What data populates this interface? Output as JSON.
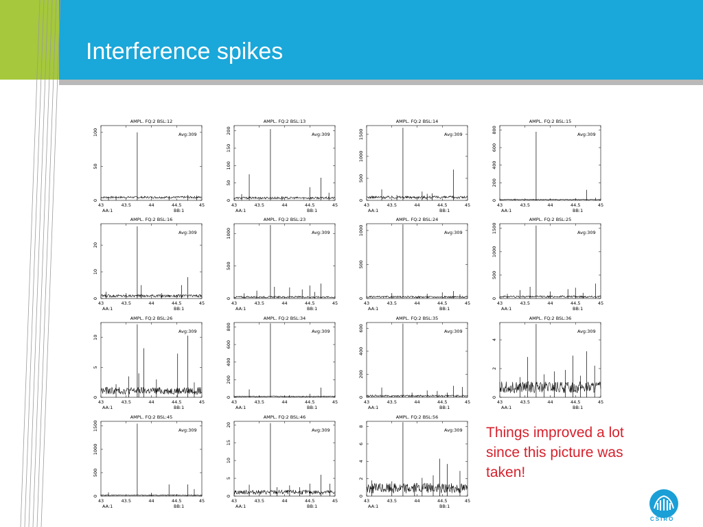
{
  "slide": {
    "title": "Interference spikes",
    "note_lines": [
      "Things improved a lot",
      "since this picture was",
      "taken!"
    ],
    "logo_text": "CSIRO",
    "colors": {
      "header": "#1aa7d9",
      "accent_green": "#a5c83c",
      "note": "#d6212c",
      "stripe": "#b9b9b9"
    }
  },
  "chart_data": [
    {
      "type": "line",
      "title": "AMPL.  FQ:2  BSL:12",
      "avg": "Avg:309",
      "x_ticks": [
        "43",
        "43.5",
        "44",
        "44.5",
        "45"
      ],
      "y_ticks": [
        "0",
        "50",
        "100"
      ],
      "ylim": [
        0,
        110
      ],
      "xlim": [
        43,
        45
      ],
      "label_left": "AA:1",
      "label_right": "BB:1",
      "baseline": 3,
      "noise": 3,
      "spikes": [
        [
          43.72,
          100
        ],
        [
          44.72,
          8
        ],
        [
          44.35,
          6
        ],
        [
          44.9,
          7
        ],
        [
          43.3,
          5
        ],
        [
          43.15,
          4
        ]
      ]
    },
    {
      "type": "line",
      "title": "AMPL.  FQ:2  BSL:13",
      "avg": "Avg:309",
      "x_ticks": [
        "43",
        "43.5",
        "44",
        "44.5",
        "45"
      ],
      "y_ticks": [
        "0",
        "50",
        "100",
        "150",
        "200"
      ],
      "ylim": [
        0,
        215
      ],
      "xlim": [
        43,
        45
      ],
      "label_left": "AA:1",
      "label_right": "BB:1",
      "baseline": 4,
      "noise": 6,
      "spikes": [
        [
          43.72,
          205
        ],
        [
          43.3,
          75
        ],
        [
          44.5,
          38
        ],
        [
          44.72,
          65
        ],
        [
          44.88,
          22
        ],
        [
          43.15,
          18
        ],
        [
          43.95,
          12
        ]
      ]
    },
    {
      "type": "line",
      "title": "AMPL.  FQ:2  BSL:14",
      "avg": "Avg:309",
      "x_ticks": [
        "43",
        "43.5",
        "44",
        "44.5",
        "45"
      ],
      "y_ticks": [
        "0",
        "500",
        "1000",
        "1500"
      ],
      "ylim": [
        0,
        1700
      ],
      "xlim": [
        43,
        45
      ],
      "label_left": "AA:1",
      "label_right": "BB:1",
      "baseline": 40,
      "noise": 60,
      "spikes": [
        [
          43.72,
          1650
        ],
        [
          44.72,
          700
        ],
        [
          43.3,
          250
        ],
        [
          44.1,
          200
        ],
        [
          44.2,
          150
        ],
        [
          44.3,
          160
        ],
        [
          43.6,
          120
        ]
      ]
    },
    {
      "type": "line",
      "title": "AMPL.  FQ:2  BSL:15",
      "avg": "Avg:309",
      "x_ticks": [
        "43",
        "43.5",
        "44",
        "44.5",
        "45"
      ],
      "y_ticks": [
        "0",
        "200",
        "400",
        "600",
        "800"
      ],
      "ylim": [
        0,
        850
      ],
      "xlim": [
        43,
        45
      ],
      "label_left": "AA:1",
      "label_right": "BB:1",
      "baseline": 5,
      "noise": 8,
      "spikes": [
        [
          43.72,
          780
        ],
        [
          44.72,
          120
        ],
        [
          44.5,
          25
        ],
        [
          43.3,
          20
        ],
        [
          44.9,
          30
        ]
      ]
    },
    {
      "type": "line",
      "title": "AMPL.  FQ:2  BSL:16",
      "avg": "Avg:309",
      "x_ticks": [
        "43",
        "43.5",
        "44",
        "44.5",
        "45"
      ],
      "y_ticks": [
        "0",
        "10",
        "20"
      ],
      "ylim": [
        0,
        28
      ],
      "xlim": [
        43,
        45
      ],
      "label_left": "AA:1",
      "label_right": "BB:1",
      "baseline": 0.5,
      "noise": 1,
      "spikes": [
        [
          43.72,
          27
        ],
        [
          44.72,
          8
        ],
        [
          43.8,
          5
        ],
        [
          44.6,
          5
        ],
        [
          43.1,
          2.5
        ],
        [
          44.2,
          2
        ],
        [
          43.5,
          2
        ]
      ]
    },
    {
      "type": "line",
      "title": "AMPL.  FQ:2  BSL:23",
      "avg": "Avg:309",
      "x_ticks": [
        "43",
        "43.5",
        "44",
        "44.5",
        "45"
      ],
      "y_ticks": [
        "0",
        "500",
        "1000"
      ],
      "ylim": [
        0,
        1150
      ],
      "xlim": [
        43,
        45
      ],
      "label_left": "AA:1",
      "label_right": "BB:1",
      "baseline": 10,
      "noise": 25,
      "spikes": [
        [
          43.72,
          1130
        ],
        [
          44.72,
          230
        ],
        [
          44.5,
          200
        ],
        [
          43.8,
          180
        ],
        [
          44.1,
          170
        ],
        [
          43.45,
          120
        ],
        [
          44.35,
          140
        ],
        [
          44.6,
          100
        ],
        [
          43.2,
          80
        ]
      ]
    },
    {
      "type": "line",
      "title": "AMPL.  FQ:2  BSL:24",
      "avg": "Avg:309",
      "x_ticks": [
        "43",
        "43.5",
        "44",
        "44.5",
        "45"
      ],
      "y_ticks": [
        "0",
        "500",
        "1000"
      ],
      "ylim": [
        0,
        1100
      ],
      "xlim": [
        43,
        45
      ],
      "label_left": "AA:1",
      "label_right": "BB:1",
      "baseline": 10,
      "noise": 25,
      "spikes": [
        [
          43.72,
          1090
        ],
        [
          44.72,
          110
        ],
        [
          44.5,
          90
        ],
        [
          43.5,
          80
        ],
        [
          44.2,
          70
        ],
        [
          44.85,
          60
        ]
      ]
    },
    {
      "type": "line",
      "title": "AMPL.  FQ:2  BSL:25",
      "avg": "Avg:309",
      "x_ticks": [
        "43",
        "43.5",
        "44",
        "44.5",
        "45"
      ],
      "y_ticks": [
        "0",
        "500",
        "1000",
        "1500"
      ],
      "ylim": [
        0,
        1600
      ],
      "xlim": [
        43,
        45
      ],
      "label_left": "AA:1",
      "label_right": "BB:1",
      "baseline": 20,
      "noise": 40,
      "spikes": [
        [
          43.72,
          1560
        ],
        [
          43.6,
          250
        ],
        [
          44.5,
          230
        ],
        [
          44.35,
          200
        ],
        [
          44.9,
          320
        ],
        [
          43.4,
          180
        ],
        [
          44.0,
          150
        ],
        [
          44.65,
          120
        ],
        [
          43.15,
          100
        ]
      ]
    },
    {
      "type": "line",
      "title": "AMPL.  FQ:2  BSL:26",
      "avg": "Avg:309",
      "x_ticks": [
        "43",
        "43.5",
        "44",
        "44.5",
        "45"
      ],
      "y_ticks": [
        "0",
        "5",
        "10"
      ],
      "ylim": [
        0,
        12.5
      ],
      "xlim": [
        43,
        45
      ],
      "label_left": "AA:1",
      "label_right": "BB:1",
      "baseline": 0.5,
      "noise": 1.2,
      "spikes": [
        [
          43.72,
          12.2
        ],
        [
          44.72,
          10.3
        ],
        [
          43.85,
          8.2
        ],
        [
          44.52,
          7.3
        ],
        [
          43.55,
          3.5
        ],
        [
          43.75,
          4
        ],
        [
          44.1,
          3
        ],
        [
          44.85,
          2.5
        ],
        [
          43.3,
          2.2
        ]
      ]
    },
    {
      "type": "line",
      "title": "AMPL.  FQ:2  BSL:34",
      "avg": "Avg:309",
      "x_ticks": [
        "43",
        "43.5",
        "44",
        "44.5",
        "45"
      ],
      "y_ticks": [
        "0",
        "200",
        "400",
        "600",
        "800"
      ],
      "ylim": [
        0,
        850
      ],
      "xlim": [
        43,
        45
      ],
      "label_left": "AA:1",
      "label_right": "BB:1",
      "baseline": 5,
      "noise": 10,
      "spikes": [
        [
          43.72,
          840
        ],
        [
          44.72,
          110
        ],
        [
          43.3,
          90
        ],
        [
          44.5,
          40
        ],
        [
          44.1,
          25
        ]
      ]
    },
    {
      "type": "line",
      "title": "AMPL.  FQ:2  BSL:35",
      "avg": "Avg:309",
      "x_ticks": [
        "43",
        "43.5",
        "44",
        "44.5",
        "45"
      ],
      "y_ticks": [
        "0",
        "200",
        "400",
        "600"
      ],
      "ylim": [
        0,
        650
      ],
      "xlim": [
        43,
        45
      ],
      "label_left": "AA:1",
      "label_right": "BB:1",
      "baseline": 5,
      "noise": 15,
      "spikes": [
        [
          43.72,
          640
        ],
        [
          44.72,
          100
        ],
        [
          44.9,
          90
        ],
        [
          43.3,
          85
        ],
        [
          44.2,
          60
        ],
        [
          44.4,
          55
        ],
        [
          43.9,
          40
        ],
        [
          44.6,
          40
        ]
      ]
    },
    {
      "type": "line",
      "title": "AMPL.  FQ:2  BSL:36",
      "avg": "Avg:309",
      "x_ticks": [
        "43",
        "43.5",
        "44",
        "44.5",
        "45"
      ],
      "y_ticks": [
        "0",
        "2",
        "4"
      ],
      "ylim": [
        0,
        5.2
      ],
      "xlim": [
        43,
        45
      ],
      "label_left": "AA:1",
      "label_right": "BB:1",
      "baseline": 0.3,
      "noise": 0.8,
      "spikes": [
        [
          43.72,
          5.1
        ],
        [
          43.55,
          2.8
        ],
        [
          44.72,
          3.2
        ],
        [
          44.45,
          2.9
        ],
        [
          44.88,
          2.2
        ],
        [
          44.3,
          1.9
        ],
        [
          43.88,
          1.6
        ],
        [
          44.08,
          1.8
        ],
        [
          43.4,
          1.4
        ],
        [
          44.6,
          1.5
        ]
      ]
    },
    {
      "type": "line",
      "title": "AMPL.  FQ:2  BSL:45",
      "avg": "Avg:309",
      "x_ticks": [
        "43",
        "43.5",
        "44",
        "44.5",
        "45"
      ],
      "y_ticks": [
        "0",
        "500",
        "1000",
        "1500"
      ],
      "ylim": [
        0,
        1600
      ],
      "xlim": [
        43,
        45
      ],
      "label_left": "AA:1",
      "label_right": "BB:1",
      "baseline": 10,
      "noise": 20,
      "spikes": [
        [
          43.72,
          1550
        ],
        [
          44.35,
          250
        ],
        [
          44.72,
          250
        ],
        [
          44.85,
          150
        ],
        [
          43.15,
          80
        ],
        [
          44.0,
          70
        ]
      ]
    },
    {
      "type": "line",
      "title": "AMPL.  FQ:2  BSL:46",
      "avg": "Avg:309",
      "x_ticks": [
        "43",
        "43.5",
        "44",
        "44.5",
        "45"
      ],
      "y_ticks": [
        "0",
        "5",
        "10",
        "15",
        "20"
      ],
      "ylim": [
        0,
        21
      ],
      "xlim": [
        43,
        45
      ],
      "label_left": "AA:1",
      "label_right": "BB:1",
      "baseline": 0.5,
      "noise": 1.2,
      "spikes": [
        [
          43.72,
          20.5
        ],
        [
          44.72,
          6
        ],
        [
          44.5,
          3.5
        ],
        [
          43.3,
          3.2
        ],
        [
          44.1,
          3
        ],
        [
          44.9,
          3.5
        ],
        [
          43.85,
          2.5
        ],
        [
          44.3,
          2.5
        ]
      ]
    },
    {
      "type": "line",
      "title": "AMPL.  FQ:2  BSL:56",
      "avg": "Avg:309",
      "x_ticks": [
        "43",
        "43.5",
        "44",
        "44.5",
        "45"
      ],
      "y_ticks": [
        "0",
        "2",
        "4",
        "6",
        "8"
      ],
      "ylim": [
        0,
        8.6
      ],
      "xlim": [
        43,
        45
      ],
      "label_left": "AA:1",
      "label_right": "BB:1",
      "baseline": 0.3,
      "noise": 1.2,
      "spikes": [
        [
          43.72,
          8.5
        ],
        [
          44.45,
          4.3
        ],
        [
          44.6,
          3.7
        ],
        [
          44.32,
          2.4
        ],
        [
          44.85,
          2.9
        ],
        [
          44.1,
          2.1
        ],
        [
          43.5,
          1.7
        ],
        [
          43.1,
          1.8
        ],
        [
          43.95,
          1.5
        ]
      ]
    }
  ]
}
